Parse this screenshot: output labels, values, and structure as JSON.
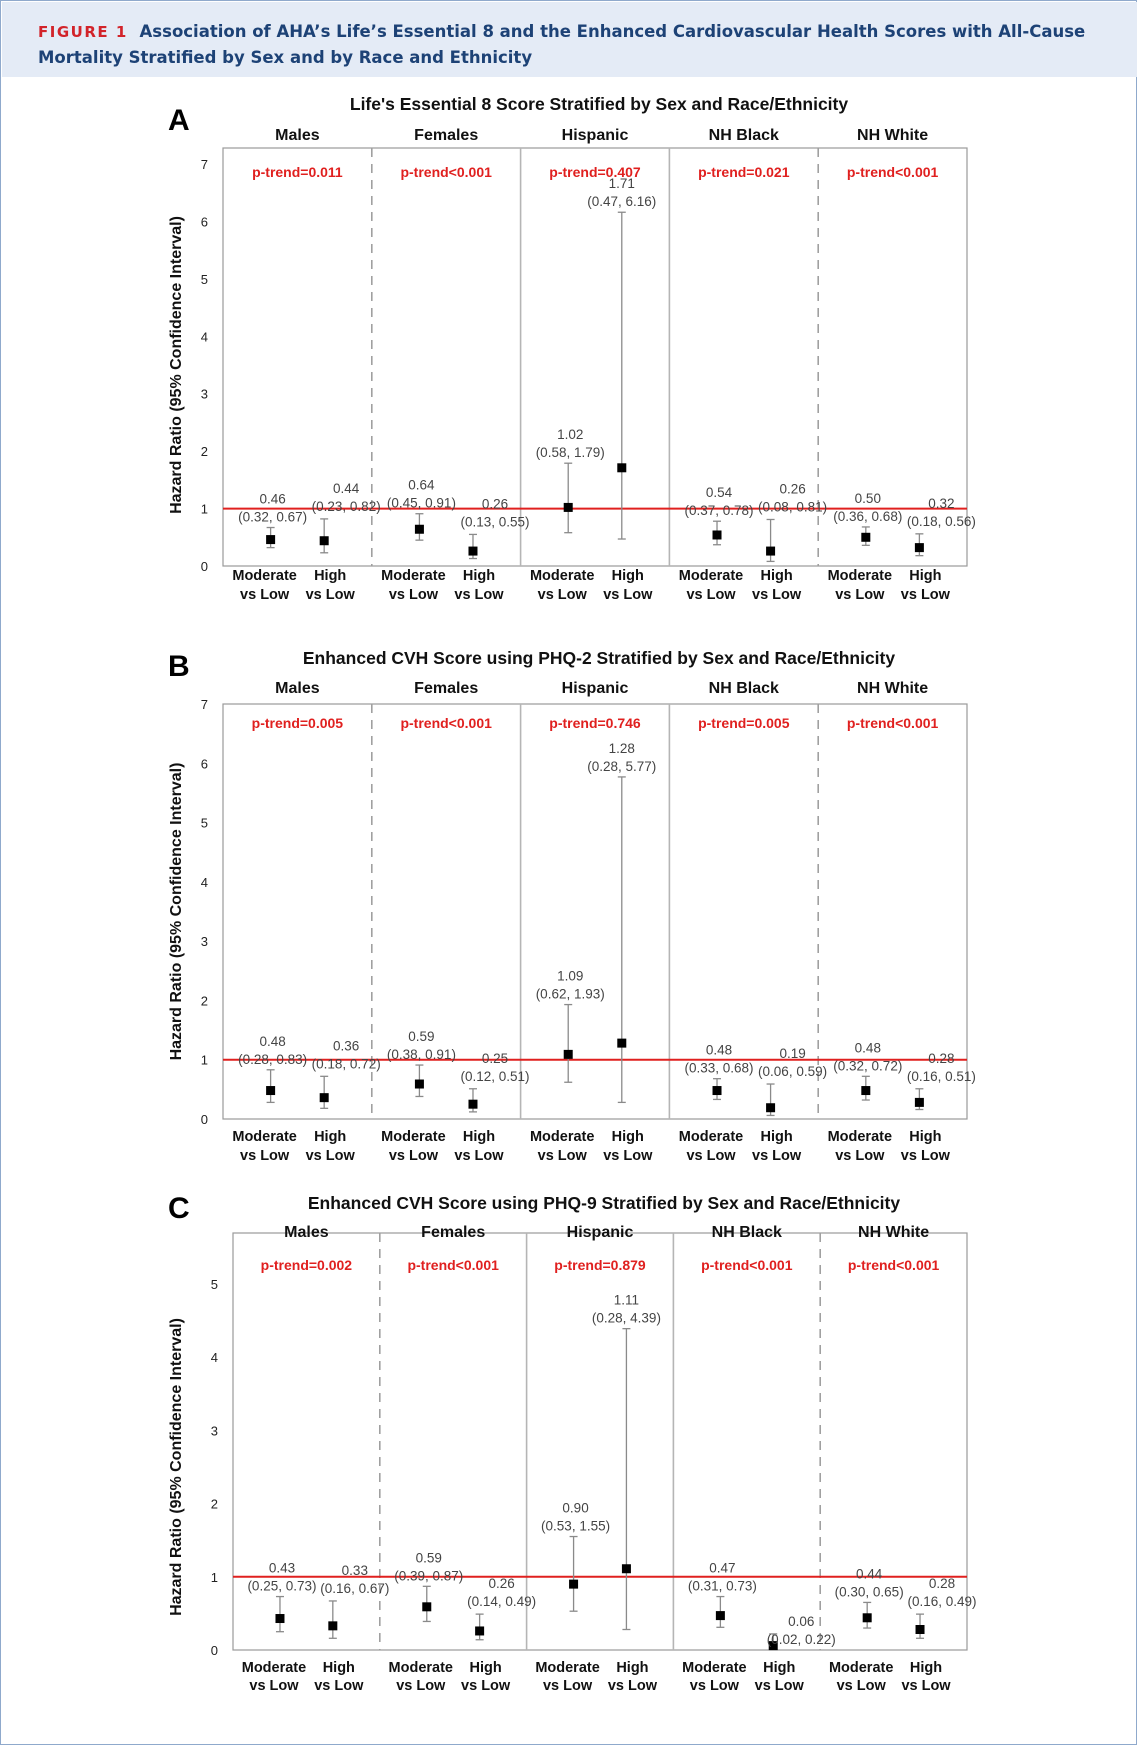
{
  "header": {
    "figure_label": "FIGURE 1",
    "caption": "Association of AHA’s Life’s Essential 8 and the Enhanced Cardiovascular Health Scores with All-Cause Mortality Stratified by Sex and by Race and Ethnicity"
  },
  "colors": {
    "header_bg": "#e4ebf6",
    "header_text": "#1d4276",
    "figure_label": "#d2232a",
    "ptrend": "#e0201f",
    "reference_line": "#e0201f",
    "marker": "#000000"
  },
  "chart_data": [
    {
      "type": "scatter",
      "panel_letter": "A",
      "title": "Life's Essential 8 Score Stratified by Sex and Race/Ethnicity",
      "ylabel": "Hazard Ratio (95% Confidence Interval)",
      "ylim": [
        0,
        7
      ],
      "yticks": [
        0,
        1,
        2,
        3,
        4,
        5,
        6,
        7
      ],
      "reference_line": 1,
      "categories": [
        "Moderate vs Low",
        "High vs Low"
      ],
      "groups": [
        {
          "name": "Males",
          "p_trend": "p-trend=0.011",
          "points": [
            {
              "category": "Moderate vs Low",
              "hr": 0.46,
              "lower": 0.32,
              "upper": 0.67,
              "hr_label": "0.46",
              "ci_label": "(0.32, 0.67)"
            },
            {
              "category": "High vs Low",
              "hr": 0.44,
              "lower": 0.23,
              "upper": 0.82,
              "hr_label": "0.44",
              "ci_label": "(0.23, 0.82)"
            }
          ]
        },
        {
          "name": "Females",
          "p_trend": "p-trend<0.001",
          "points": [
            {
              "category": "Moderate vs Low",
              "hr": 0.64,
              "lower": 0.45,
              "upper": 0.91,
              "hr_label": "0.64",
              "ci_label": "(0.45, 0.91)"
            },
            {
              "category": "High vs Low",
              "hr": 0.26,
              "lower": 0.13,
              "upper": 0.55,
              "hr_label": "0.26",
              "ci_label": "(0.13, 0.55)"
            }
          ]
        },
        {
          "name": "Hispanic",
          "p_trend": "p-trend=0.407",
          "points": [
            {
              "category": "Moderate vs Low",
              "hr": 1.02,
              "lower": 0.58,
              "upper": 1.79,
              "hr_label": "1.02",
              "ci_label": "(0.58, 1.79)"
            },
            {
              "category": "High vs Low",
              "hr": 1.71,
              "lower": 0.47,
              "upper": 6.16,
              "hr_label": "1.71",
              "ci_label": "(0.47, 6.16)"
            }
          ]
        },
        {
          "name": "NH Black",
          "p_trend": "p-trend=0.021",
          "points": [
            {
              "category": "Moderate vs Low",
              "hr": 0.54,
              "lower": 0.37,
              "upper": 0.78,
              "hr_label": "0.54",
              "ci_label": "(0.37, 0.78)"
            },
            {
              "category": "High vs Low",
              "hr": 0.26,
              "lower": 0.08,
              "upper": 0.81,
              "hr_label": "0.26",
              "ci_label": "(0.08, 0.81)"
            }
          ]
        },
        {
          "name": "NH White",
          "p_trend": "p-trend<0.001",
          "points": [
            {
              "category": "Moderate vs Low",
              "hr": 0.5,
              "lower": 0.36,
              "upper": 0.68,
              "hr_label": "0.50",
              "ci_label": "(0.36, 0.68)"
            },
            {
              "category": "High vs Low",
              "hr": 0.32,
              "lower": 0.18,
              "upper": 0.56,
              "hr_label": "0.32",
              "ci_label": "(0.18, 0.56)"
            }
          ]
        }
      ]
    },
    {
      "type": "scatter",
      "panel_letter": "B",
      "title": "Enhanced CVH Score using PHQ-2 Stratified by Sex and Race/Ethnicity",
      "ylabel": "Hazard Ratio (95% Confidence Interval)",
      "ylim": [
        0,
        7
      ],
      "yticks": [
        0,
        1,
        2,
        3,
        4,
        5,
        6,
        7
      ],
      "reference_line": 1,
      "categories": [
        "Moderate vs Low",
        "High vs Low"
      ],
      "groups": [
        {
          "name": "Males",
          "p_trend": "p-trend=0.005",
          "points": [
            {
              "category": "Moderate vs Low",
              "hr": 0.48,
              "lower": 0.28,
              "upper": 0.83,
              "hr_label": "0.48",
              "ci_label": "(0.28, 0.83)"
            },
            {
              "category": "High vs Low",
              "hr": 0.36,
              "lower": 0.18,
              "upper": 0.72,
              "hr_label": "0.36",
              "ci_label": "(0.18, 0.72)"
            }
          ]
        },
        {
          "name": "Females",
          "p_trend": "p-trend<0.001",
          "points": [
            {
              "category": "Moderate vs Low",
              "hr": 0.59,
              "lower": 0.38,
              "upper": 0.91,
              "hr_label": "0.59",
              "ci_label": "(0.38, 0.91)"
            },
            {
              "category": "High vs Low",
              "hr": 0.25,
              "lower": 0.12,
              "upper": 0.51,
              "hr_label": "0.25",
              "ci_label": "(0.12, 0.51)"
            }
          ]
        },
        {
          "name": "Hispanic",
          "p_trend": "p-trend=0.746",
          "points": [
            {
              "category": "Moderate vs Low",
              "hr": 1.09,
              "lower": 0.62,
              "upper": 1.93,
              "hr_label": "1.09",
              "ci_label": "(0.62, 1.93)"
            },
            {
              "category": "High vs Low",
              "hr": 1.28,
              "lower": 0.28,
              "upper": 5.77,
              "hr_label": "1.28",
              "ci_label": "(0.28, 5.77)"
            }
          ]
        },
        {
          "name": "NH Black",
          "p_trend": "p-trend=0.005",
          "points": [
            {
              "category": "Moderate vs Low",
              "hr": 0.48,
              "lower": 0.33,
              "upper": 0.68,
              "hr_label": "0.48",
              "ci_label": "(0.33, 0.68)"
            },
            {
              "category": "High vs Low",
              "hr": 0.19,
              "lower": 0.06,
              "upper": 0.59,
              "hr_label": "0.19",
              "ci_label": "(0.06, 0.59)"
            }
          ]
        },
        {
          "name": "NH White",
          "p_trend": "p-trend<0.001",
          "points": [
            {
              "category": "Moderate vs Low",
              "hr": 0.48,
              "lower": 0.32,
              "upper": 0.72,
              "hr_label": "0.48",
              "ci_label": "(0.32, 0.72)"
            },
            {
              "category": "High vs Low",
              "hr": 0.28,
              "lower": 0.16,
              "upper": 0.51,
              "hr_label": "0.28",
              "ci_label": "(0.16, 0.51)"
            }
          ]
        }
      ]
    },
    {
      "type": "scatter",
      "panel_letter": "C",
      "title": "Enhanced CVH Score using PHQ-9 Stratified by Sex and Race/Ethnicity",
      "ylabel": "Hazard Ratio (95% Confidence Interval)",
      "ylim": [
        0,
        5.5
      ],
      "yticks": [
        0,
        1,
        2,
        3,
        4,
        5
      ],
      "reference_line": 1,
      "categories": [
        "Moderate vs Low",
        "High vs Low"
      ],
      "groups": [
        {
          "name": "Males",
          "p_trend": "p-trend=0.002",
          "points": [
            {
              "category": "Moderate vs Low",
              "hr": 0.43,
              "lower": 0.25,
              "upper": 0.73,
              "hr_label": "0.43",
              "ci_label": "(0.25, 0.73)"
            },
            {
              "category": "High vs Low",
              "hr": 0.33,
              "lower": 0.16,
              "upper": 0.67,
              "hr_label": "0.33",
              "ci_label": "(0.16, 0.67)"
            }
          ]
        },
        {
          "name": "Females",
          "p_trend": "p-trend<0.001",
          "points": [
            {
              "category": "Moderate vs Low",
              "hr": 0.59,
              "lower": 0.39,
              "upper": 0.87,
              "hr_label": "0.59",
              "ci_label": "(0.39, 0.87)"
            },
            {
              "category": "High vs Low",
              "hr": 0.26,
              "lower": 0.14,
              "upper": 0.49,
              "hr_label": "0.26",
              "ci_label": "(0.14, 0.49)"
            }
          ]
        },
        {
          "name": "Hispanic",
          "p_trend": "p-trend=0.879",
          "points": [
            {
              "category": "Moderate vs Low",
              "hr": 0.9,
              "lower": 0.53,
              "upper": 1.55,
              "hr_label": "0.90",
              "ci_label": "(0.53, 1.55)"
            },
            {
              "category": "High vs Low",
              "hr": 1.11,
              "lower": 0.28,
              "upper": 4.39,
              "hr_label": "1.11",
              "ci_label": "(0.28, 4.39)"
            }
          ]
        },
        {
          "name": "NH Black",
          "p_trend": "p-trend<0.001",
          "points": [
            {
              "category": "Moderate vs Low",
              "hr": 0.47,
              "lower": 0.31,
              "upper": 0.73,
              "hr_label": "0.47",
              "ci_label": "(0.31, 0.73)"
            },
            {
              "category": "High vs Low",
              "hr": 0.06,
              "lower": 0.02,
              "upper": 0.22,
              "hr_label": "0.06",
              "ci_label": "(0.02, 0.22)"
            }
          ]
        },
        {
          "name": "NH White",
          "p_trend": "p-trend<0.001",
          "points": [
            {
              "category": "Moderate vs Low",
              "hr": 0.44,
              "lower": 0.3,
              "upper": 0.65,
              "hr_label": "0.44",
              "ci_label": "(0.30, 0.65)"
            },
            {
              "category": "High vs Low",
              "hr": 0.28,
              "lower": 0.16,
              "upper": 0.49,
              "hr_label": "0.28",
              "ci_label": "(0.16, 0.49)"
            }
          ]
        }
      ]
    }
  ]
}
